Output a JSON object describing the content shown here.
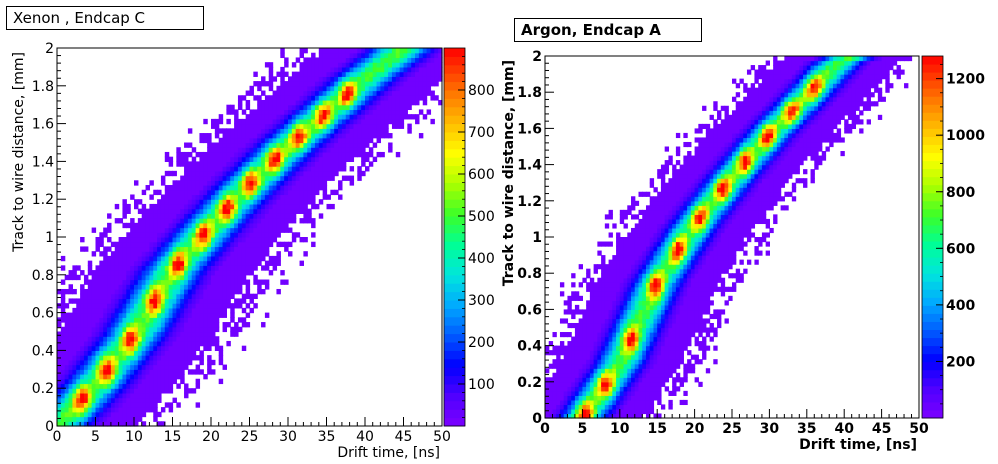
{
  "chart_data": [
    {
      "type": "heatmap",
      "title": "Xenon , Endcap C",
      "xlabel": "Drift time, [ns]",
      "ylabel": "Track to wire distance, [mm]",
      "xlim": [
        0,
        50
      ],
      "ylim": [
        0,
        2
      ],
      "x_ticks": [
        "0",
        "5",
        "10",
        "15",
        "20",
        "25",
        "30",
        "35",
        "40",
        "45",
        "50"
      ],
      "y_ticks": [
        "0",
        "0.2",
        "0.4",
        "0.6",
        "0.8",
        "1",
        "1.2",
        "1.4",
        "1.6",
        "1.8",
        "2"
      ],
      "z_range": [
        0,
        900
      ],
      "colorbar_ticks": [
        "100",
        "200",
        "300",
        "400",
        "500",
        "600",
        "700",
        "800"
      ],
      "peak_z": 880,
      "band_center": [
        [
          0,
          0.0
        ],
        [
          5,
          0.22
        ],
        [
          10,
          0.48
        ],
        [
          15,
          0.82
        ],
        [
          20,
          1.06
        ],
        [
          25,
          1.28
        ],
        [
          30,
          1.48
        ],
        [
          35,
          1.66
        ],
        [
          40,
          1.84
        ],
        [
          45,
          2.0
        ]
      ],
      "band_halfwidth_t": 4.5,
      "hotspot_t": [
        3.2,
        6.5,
        9.6,
        12.7,
        15.8,
        19.0,
        22.1,
        25.2,
        28.3,
        31.4,
        34.6,
        37.7
      ]
    },
    {
      "type": "heatmap",
      "title": "Argon, Endcap A",
      "xlabel": "Drift time, [ns]",
      "ylabel": "Track to wire distance, [mm]",
      "xlim": [
        0,
        50
      ],
      "ylim": [
        0,
        2
      ],
      "x_ticks": [
        "0",
        "5",
        "10",
        "15",
        "20",
        "25",
        "30",
        "35",
        "40",
        "45",
        "50"
      ],
      "y_ticks": [
        "0",
        "0.2",
        "0.4",
        "0.6",
        "0.8",
        "1",
        "1.2",
        "1.4",
        "1.6",
        "1.8",
        "2"
      ],
      "z_range": [
        0,
        1280
      ],
      "colorbar_ticks": [
        "200",
        "400",
        "600",
        "800",
        "1000",
        "1200"
      ],
      "peak_z": 1260,
      "band_center": [
        [
          5,
          0.0
        ],
        [
          10,
          0.3
        ],
        [
          15,
          0.75
        ],
        [
          20,
          1.07
        ],
        [
          25,
          1.33
        ],
        [
          30,
          1.57
        ],
        [
          35,
          1.78
        ],
        [
          39,
          1.96
        ],
        [
          41,
          2.0
        ]
      ],
      "band_halfwidth_t": 3.6,
      "hotspot_t": [
        5.4,
        8.1,
        11.5,
        14.8,
        17.8,
        20.8,
        23.8,
        26.8,
        29.8,
        33.0,
        36.0
      ]
    }
  ]
}
